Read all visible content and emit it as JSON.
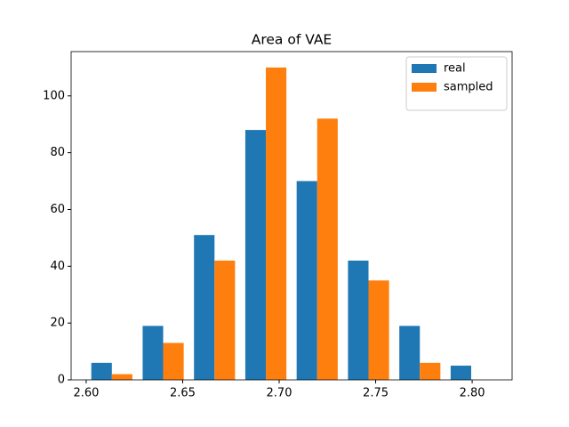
{
  "chart_data": {
    "type": "histogram",
    "title": "Area of VAE",
    "bins": [
      2.6,
      2.6266,
      2.6532,
      2.6798,
      2.7064,
      2.733,
      2.7596,
      2.7862,
      2.8128
    ],
    "series": [
      {
        "name": "real",
        "color": "#1f77b4",
        "values": [
          6,
          19,
          51,
          88,
          70,
          42,
          19,
          5
        ]
      },
      {
        "name": "sampled",
        "color": "#ff7f0e",
        "values": [
          2,
          13,
          42,
          110,
          92,
          35,
          6,
          0
        ]
      }
    ],
    "xlim": [
      2.5922,
      2.8207
    ],
    "xticks": [
      {
        "value": 2.6,
        "label": "2.60"
      },
      2.65,
      {
        "value": 2.7,
        "label": "2.70"
      },
      2.75,
      {
        "value": 2.8,
        "label": "2.80"
      }
    ],
    "ylim": [
      0,
      115.6
    ],
    "yticks": [
      0,
      20,
      40,
      60,
      80,
      100
    ],
    "legend": "upper right"
  }
}
